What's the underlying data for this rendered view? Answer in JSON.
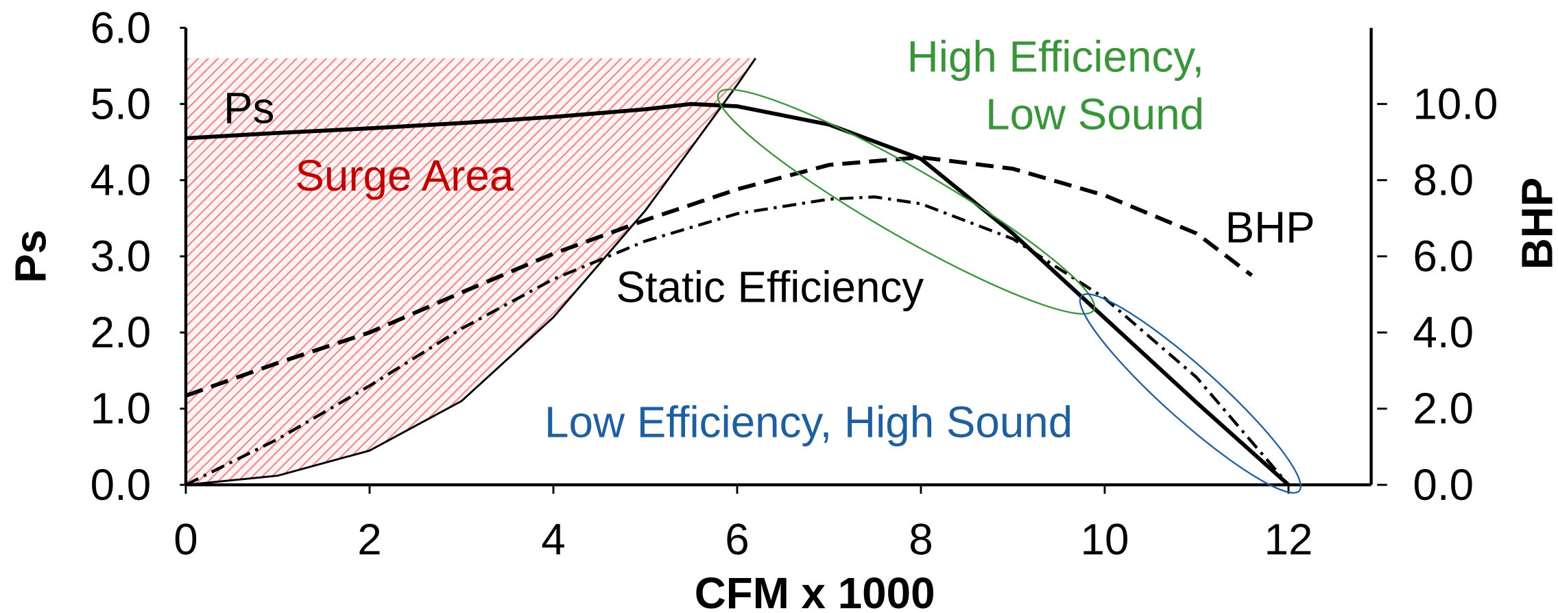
{
  "chart_data": {
    "type": "line",
    "x_label": "CFM x 1000",
    "y_label": "Ps",
    "y2_label": "BHP",
    "xlim": [
      0,
      12.9
    ],
    "xticks": [
      0,
      2,
      4,
      6,
      8,
      10,
      12
    ],
    "ylim": [
      0,
      6
    ],
    "yticks": [
      {
        "value": 0,
        "label": "0.0"
      },
      {
        "value": 1,
        "label": "1.0"
      },
      {
        "value": 2,
        "label": "2.0"
      },
      {
        "value": 3,
        "label": "3.0"
      },
      {
        "value": 4,
        "label": "4.0"
      },
      {
        "value": 5,
        "label": "5.0"
      },
      {
        "value": 6,
        "label": "6.0"
      }
    ],
    "y2lim": [
      0,
      12
    ],
    "y2ticks": [
      {
        "value": 0,
        "label": "0.0"
      },
      {
        "value": 2,
        "label": "2.0"
      },
      {
        "value": 4,
        "label": "4.0"
      },
      {
        "value": 6,
        "label": "6.0"
      },
      {
        "value": 8,
        "label": "8.0"
      },
      {
        "value": 10,
        "label": "10.0"
      }
    ],
    "series": [
      {
        "name": "Ps",
        "color": "#000000",
        "dash": "solid",
        "x": [
          0,
          1,
          2,
          3,
          4,
          5,
          5.5,
          6,
          7,
          8,
          9,
          10,
          11,
          12
        ],
        "values": [
          4.55,
          4.62,
          4.68,
          4.75,
          4.83,
          4.93,
          5.0,
          4.97,
          4.73,
          4.28,
          3.3,
          2.19,
          1.08,
          0
        ]
      },
      {
        "name": "BHP",
        "color": "#000000",
        "dash": "dashed",
        "axis": "y2",
        "x": [
          0,
          1,
          2,
          3,
          4,
          5,
          6,
          7,
          8,
          9,
          10,
          11,
          11.6
        ],
        "values": [
          2.34,
          3.2,
          4.0,
          5.05,
          6.07,
          6.95,
          7.76,
          8.4,
          8.6,
          8.3,
          7.6,
          6.6,
          5.5
        ]
      },
      {
        "name": "Static Efficiency",
        "color": "#000000",
        "dash": "dashdot",
        "x": [
          0,
          1,
          2,
          3,
          4,
          5,
          6,
          7,
          7.5,
          8,
          9,
          10,
          11,
          12
        ],
        "values": [
          0,
          0.6,
          1.3,
          2.05,
          2.7,
          3.2,
          3.56,
          3.75,
          3.78,
          3.69,
          3.23,
          2.45,
          1.41,
          0
        ]
      }
    ],
    "surge_line": {
      "color": "#000000",
      "x": [
        0,
        1,
        2,
        3,
        4,
        5,
        6,
        6.2
      ],
      "values": [
        0,
        0.12,
        0.45,
        1.1,
        2.2,
        3.6,
        5.25,
        5.6
      ]
    },
    "annotations": {
      "surge_area": "Surge Area",
      "high_efficiency": [
        "High Efficiency,",
        "Low Sound"
      ],
      "low_efficiency": "Low Efficiency, High Sound"
    }
  }
}
